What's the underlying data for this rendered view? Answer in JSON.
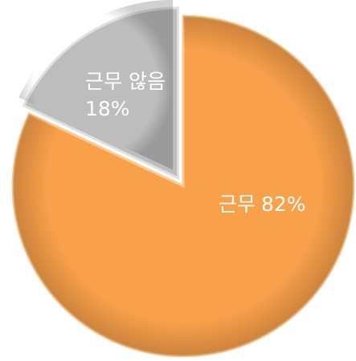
{
  "chart_data": {
    "type": "pie",
    "categories": [
      "근무",
      "근무 않음"
    ],
    "values": [
      82,
      18
    ],
    "value_labels": [
      "82%",
      "18%"
    ],
    "colors": [
      "#f9a04a",
      "#bdbdbd"
    ]
  }
}
